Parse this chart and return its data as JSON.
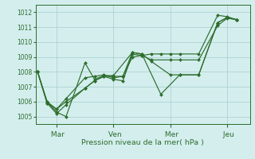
{
  "xlabel": "Pression niveau de la mer( hPa )",
  "background_color": "#d4eeee",
  "grid_color": "#a8cccc",
  "line_color": "#2d6e2d",
  "ylim": [
    1004.5,
    1012.5
  ],
  "yticks": [
    1005,
    1006,
    1007,
    1008,
    1009,
    1010,
    1011,
    1012
  ],
  "xtick_labels": [
    " Mar",
    " Ven",
    " Mer",
    " Jeu"
  ],
  "xtick_positions": [
    1,
    4,
    7,
    10
  ],
  "xlim": [
    -0.1,
    11.2
  ],
  "all_series": [
    {
      "x": [
        0,
        0.5,
        1.0,
        1.5,
        2.5,
        3.0,
        3.5,
        4.0,
        5.0,
        5.5,
        6.5,
        7.5,
        8.5,
        9.5,
        10.0,
        10.5
      ],
      "y": [
        1008.0,
        1006.0,
        1005.3,
        1005.0,
        1008.6,
        1007.5,
        1007.75,
        1007.75,
        1009.3,
        1009.2,
        1006.5,
        1007.8,
        1007.8,
        1011.3,
        1011.65,
        1011.5
      ]
    },
    {
      "x": [
        0,
        0.5,
        1.0,
        1.5,
        2.5,
        3.0,
        3.5,
        4.0,
        4.5,
        5.0,
        5.5,
        6.0,
        7.0,
        7.5,
        8.5,
        9.5,
        10.0,
        10.5
      ],
      "y": [
        1008.0,
        1005.9,
        1005.2,
        1005.8,
        1006.9,
        1007.4,
        1007.7,
        1007.7,
        1007.7,
        1009.3,
        1009.2,
        1008.7,
        1007.8,
        1007.8,
        1007.8,
        1011.3,
        1011.65,
        1011.5
      ]
    },
    {
      "x": [
        0,
        0.5,
        1.0,
        1.5,
        2.5,
        3.0,
        3.5,
        4.0,
        4.5,
        5.0,
        5.5,
        6.0,
        7.0,
        7.5,
        8.5,
        9.5,
        10.0,
        10.5
      ],
      "y": [
        1008.0,
        1005.9,
        1005.5,
        1006.0,
        1006.9,
        1007.4,
        1007.7,
        1007.5,
        1007.4,
        1009.2,
        1009.1,
        1008.8,
        1008.8,
        1008.8,
        1008.8,
        1011.1,
        1011.6,
        1011.5
      ]
    },
    {
      "x": [
        0,
        0.5,
        1.0,
        1.5,
        2.5,
        3.0,
        3.5,
        4.0,
        4.5,
        5.0,
        5.5,
        6.0,
        6.5,
        7.0,
        7.5,
        8.5,
        9.5,
        10.0,
        10.5
      ],
      "y": [
        1008.0,
        1006.0,
        1005.5,
        1006.2,
        1007.6,
        1007.7,
        1007.8,
        1007.6,
        1007.7,
        1009.0,
        1009.1,
        1009.2,
        1009.2,
        1009.2,
        1009.2,
        1009.2,
        1011.8,
        1011.7,
        1011.5
      ]
    }
  ]
}
